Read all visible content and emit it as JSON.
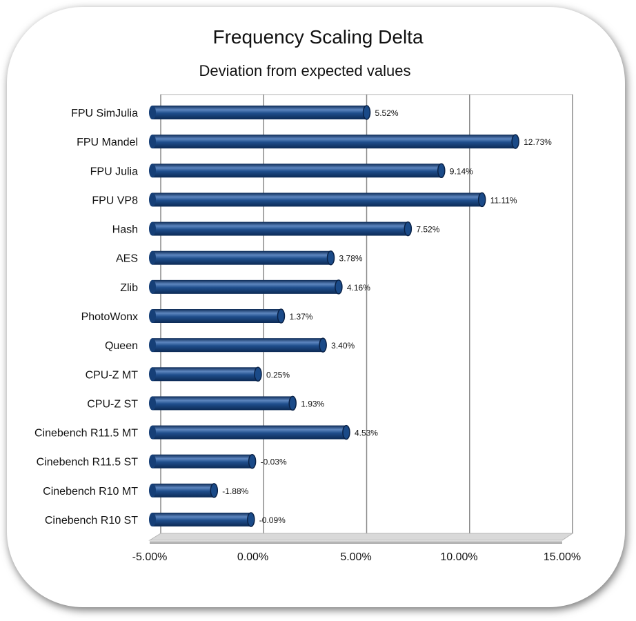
{
  "chart_data": {
    "type": "bar",
    "orientation": "horizontal",
    "title": "Frequency Scaling Delta",
    "subtitle": "Deviation  from expected values",
    "categories": [
      "FPU SimJulia",
      "FPU Mandel",
      "FPU Julia",
      "FPU VP8",
      "Hash",
      "AES",
      "Zlib",
      "PhotoWonx",
      "Queen",
      "CPU-Z MT",
      "CPU-Z ST",
      "Cinebench R11.5 MT",
      "Cinebench R11.5 ST",
      "Cinebench R10 MT",
      "Cinebench R10 ST"
    ],
    "values": [
      5.52,
      12.73,
      9.14,
      11.11,
      7.52,
      3.78,
      4.16,
      1.37,
      3.4,
      0.25,
      1.93,
      4.53,
      -0.03,
      -1.88,
      -0.09
    ],
    "data_labels": [
      "5.52%",
      "12.73%",
      "9.14%",
      "11.11%",
      "7.52%",
      "3.78%",
      "4.16%",
      "1.37%",
      "3.40%",
      "0.25%",
      "1.93%",
      "4.53%",
      "-0.03%",
      "-1.88%",
      "-0.09%"
    ],
    "xlim": [
      -5,
      15
    ],
    "xticks": [
      -5,
      0,
      5,
      10,
      15
    ],
    "xtick_labels": [
      "-5.00%",
      "0.00%",
      "5.00%",
      "10.00%",
      "15.00%"
    ],
    "grid": true,
    "legend": "none",
    "bar_color": "#1f4e8c",
    "bar_dark": "#0c2a55",
    "bar_light": "#5d86bf"
  }
}
